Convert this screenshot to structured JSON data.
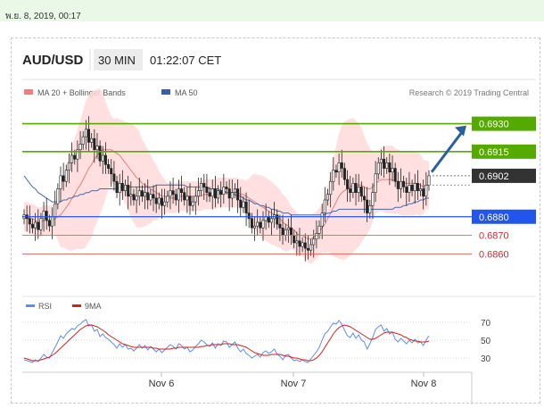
{
  "timestamp": "พ.ย. 8, 2019, 00:17",
  "header": {
    "pair": "AUD/USD",
    "interval": "30 MIN",
    "time": "01:22:07 CET"
  },
  "legend": {
    "ma20": "MA 20 + Bollinger Bands",
    "ma50": "MA 50",
    "credit": "Research © 2019 Trading Central"
  },
  "colors": {
    "resistance": "#55aa00",
    "current": "#333333",
    "pivot": "#2255ee",
    "support": "#e06060",
    "arrow": "#2a5f9e",
    "candle": "#222222",
    "bollinger_fill": "#ffd9d9",
    "ma20": "#e08080",
    "ma50": "#4a6aa8",
    "rsi": "#5b8ee6",
    "rsi_ma": "#d42020"
  },
  "chart_data": [
    {
      "type": "candlestick",
      "title": "AUD/USD",
      "ylim": [
        0.6853,
        0.6937
      ],
      "x_ticks": [
        "Nov 6",
        "Nov 7",
        "Nov 8"
      ],
      "levels": [
        {
          "name": "resistance-2",
          "value": 0.693,
          "label": "0.6930",
          "kind": "resistance"
        },
        {
          "name": "resistance-1",
          "value": 0.6915,
          "label": "0.6915",
          "kind": "resistance"
        },
        {
          "name": "current-price",
          "value": 0.6902,
          "label": "0.6902",
          "kind": "current"
        },
        {
          "name": "pivot",
          "value": 0.688,
          "label": "0.6880",
          "kind": "pivot"
        },
        {
          "name": "support-1",
          "value": 0.687,
          "label": "0.6870",
          "kind": "support"
        },
        {
          "name": "support-2",
          "value": 0.686,
          "label": "0.6860",
          "kind": "support"
        }
      ],
      "close": [
        0.6881,
        0.6879,
        0.6876,
        0.6874,
        0.6877,
        0.6873,
        0.6879,
        0.6883,
        0.6878,
        0.6875,
        0.688,
        0.6887,
        0.6895,
        0.6902,
        0.6899,
        0.6905,
        0.6909,
        0.6913,
        0.6911,
        0.6916,
        0.6919,
        0.6923,
        0.6927,
        0.692,
        0.6922,
        0.6916,
        0.6918,
        0.691,
        0.6913,
        0.6908,
        0.6906,
        0.6903,
        0.6899,
        0.6893,
        0.6898,
        0.6894,
        0.6897,
        0.6891,
        0.6892,
        0.6889,
        0.6891,
        0.6894,
        0.6891,
        0.6893,
        0.6889,
        0.6892,
        0.689,
        0.6887,
        0.689,
        0.6886,
        0.6888,
        0.6891,
        0.6894,
        0.6892,
        0.6889,
        0.6895,
        0.6893,
        0.6889,
        0.6891,
        0.6886,
        0.6888,
        0.6891,
        0.6894,
        0.6898,
        0.6896,
        0.6893,
        0.6891,
        0.6895,
        0.689,
        0.6894,
        0.6892,
        0.6896,
        0.6895,
        0.689,
        0.6893,
        0.6895,
        0.6889,
        0.6885,
        0.6888,
        0.6882,
        0.6879,
        0.6874,
        0.6875,
        0.6877,
        0.6874,
        0.6878,
        0.688,
        0.6877,
        0.6879,
        0.6881,
        0.6876,
        0.6874,
        0.687,
        0.6873,
        0.6874,
        0.687,
        0.6866,
        0.6867,
        0.6864,
        0.6866,
        0.6863,
        0.6862,
        0.6865,
        0.6868,
        0.6871,
        0.6875,
        0.6882,
        0.6889,
        0.6892,
        0.6899,
        0.6905,
        0.6904,
        0.6909,
        0.6906,
        0.69,
        0.6895,
        0.6893,
        0.6898,
        0.6893,
        0.6896,
        0.6891,
        0.6889,
        0.6882,
        0.6886,
        0.6893,
        0.6903,
        0.6909,
        0.6911,
        0.6906,
        0.6909,
        0.6904,
        0.6906,
        0.6899,
        0.6895,
        0.6899,
        0.6896,
        0.6893,
        0.6897,
        0.6894,
        0.6898,
        0.6894,
        0.6895,
        0.6891,
        0.6897,
        0.6902
      ],
      "ma20": [
        0.688,
        0.688,
        0.6879,
        0.6879,
        0.6878,
        0.6877,
        0.6877,
        0.6878,
        0.6878,
        0.6878,
        0.6878,
        0.6879,
        0.688,
        0.6881,
        0.6883,
        0.6885,
        0.6887,
        0.689,
        0.6892,
        0.6895,
        0.6897,
        0.69,
        0.6903,
        0.6906,
        0.6908,
        0.6911,
        0.6913,
        0.6915,
        0.6916,
        0.6916,
        0.6916,
        0.6916,
        0.6915,
        0.6914,
        0.6913,
        0.6911,
        0.6909,
        0.6907,
        0.6905,
        0.6903,
        0.6901,
        0.69,
        0.6898,
        0.6897,
        0.6896,
        0.6895,
        0.6894,
        0.6893,
        0.6892,
        0.6891,
        0.6891,
        0.689,
        0.689,
        0.689,
        0.689,
        0.6891,
        0.6891,
        0.6891,
        0.6891,
        0.6891,
        0.6891,
        0.6891,
        0.6891,
        0.6891,
        0.6892,
        0.6892,
        0.6892,
        0.6892,
        0.6892,
        0.6893,
        0.6893,
        0.6893,
        0.6893,
        0.6893,
        0.6893,
        0.6893,
        0.6893,
        0.6892,
        0.6892,
        0.6891,
        0.689,
        0.6889,
        0.6888,
        0.6887,
        0.6886,
        0.6885,
        0.6884,
        0.6883,
        0.6882,
        0.6881,
        0.688,
        0.6879,
        0.6877,
        0.6876,
        0.6875,
        0.6874,
        0.6873,
        0.6871,
        0.687,
        0.687,
        0.6869,
        0.6868,
        0.6868,
        0.6869,
        0.687,
        0.6872,
        0.6874,
        0.6876,
        0.6879,
        0.6882,
        0.6885,
        0.6888,
        0.6891,
        0.6893,
        0.6894,
        0.6895,
        0.6896,
        0.6897,
        0.6897,
        0.6897,
        0.6897,
        0.6896,
        0.6895,
        0.6895,
        0.6896,
        0.6898,
        0.6899,
        0.69,
        0.69,
        0.69,
        0.69,
        0.69,
        0.6899,
        0.6899,
        0.6898,
        0.6898,
        0.6898,
        0.6898,
        0.6898,
        0.6898,
        0.6898,
        0.6897,
        0.6896,
        0.6897,
        0.6897
      ],
      "ma50": [
        0.6902,
        0.69,
        0.6898,
        0.6896,
        0.6895,
        0.6893,
        0.6892,
        0.6891,
        0.689,
        0.6889,
        0.6888,
        0.6888,
        0.6888,
        0.6888,
        0.6889,
        0.6889,
        0.689,
        0.689,
        0.6891,
        0.6891,
        0.6892,
        0.6892,
        0.6893,
        0.6893,
        0.6894,
        0.6894,
        0.6894,
        0.6895,
        0.6895,
        0.6895,
        0.6895,
        0.6895,
        0.6895,
        0.6895,
        0.6896,
        0.6896,
        0.6896,
        0.6896,
        0.6896,
        0.6896,
        0.6896,
        0.6896,
        0.6896,
        0.6896,
        0.6896,
        0.6896,
        0.6896,
        0.6897,
        0.6897,
        0.6897,
        0.6897,
        0.6897,
        0.6897,
        0.6897,
        0.6897,
        0.6897,
        0.6897,
        0.6897,
        0.6896,
        0.6896,
        0.6896,
        0.6896,
        0.6896,
        0.6896,
        0.6896,
        0.6896,
        0.6895,
        0.6895,
        0.6895,
        0.6895,
        0.6894,
        0.6894,
        0.6893,
        0.6893,
        0.6892,
        0.6892,
        0.6891,
        0.6891,
        0.689,
        0.6889,
        0.6889,
        0.6888,
        0.6887,
        0.6887,
        0.6886,
        0.6886,
        0.6885,
        0.6885,
        0.6884,
        0.6884,
        0.6883,
        0.6883,
        0.6882,
        0.6882,
        0.6882,
        0.6881,
        0.6881,
        0.6881,
        0.6881,
        0.6881,
        0.6881,
        0.6881,
        0.6881,
        0.6881,
        0.6881,
        0.6881,
        0.6881,
        0.6881,
        0.6882,
        0.6882,
        0.6883,
        0.6883,
        0.6884,
        0.6884,
        0.6884,
        0.6884,
        0.6884,
        0.6884,
        0.6884,
        0.6884,
        0.6884,
        0.6884,
        0.6884,
        0.6884,
        0.6884,
        0.6884,
        0.6884,
        0.6884,
        0.6884,
        0.6884,
        0.6884,
        0.6884,
        0.6885,
        0.6885,
        0.6885,
        0.6886,
        0.6886,
        0.6887,
        0.6887,
        0.6888,
        0.6888,
        0.6889,
        0.6889,
        0.689,
        0.689
      ]
    },
    {
      "type": "line",
      "ylim": [
        20,
        80
      ],
      "y_ticks": [
        70,
        50,
        30
      ],
      "series": [
        {
          "name": "RSI",
          "values": [
            28,
            27,
            26,
            25,
            28,
            26,
            30,
            34,
            31,
            30,
            36,
            42,
            48,
            55,
            52,
            57,
            60,
            63,
            62,
            66,
            68,
            71,
            73,
            66,
            67,
            60,
            62,
            54,
            57,
            53,
            51,
            48,
            45,
            41,
            46,
            42,
            45,
            40,
            41,
            38,
            41,
            45,
            41,
            44,
            39,
            43,
            40,
            37,
            40,
            36,
            39,
            42,
            45,
            43,
            40,
            46,
            44,
            40,
            42,
            37,
            39,
            43,
            46,
            50,
            48,
            45,
            43,
            47,
            41,
            46,
            44,
            49,
            48,
            42,
            45,
            48,
            41,
            37,
            40,
            35,
            33,
            30,
            32,
            34,
            31,
            36,
            38,
            35,
            37,
            40,
            34,
            32,
            28,
            33,
            34,
            30,
            27,
            28,
            26,
            28,
            26,
            25,
            29,
            33,
            37,
            42,
            50,
            57,
            60,
            65,
            69,
            68,
            72,
            68,
            61,
            55,
            53,
            58,
            52,
            56,
            50,
            48,
            40,
            46,
            53,
            62,
            65,
            67,
            60,
            63,
            57,
            59,
            51,
            48,
            52,
            49,
            46,
            50,
            47,
            51,
            47,
            48,
            44,
            50,
            55
          ]
        },
        {
          "name": "9MA",
          "values": [
            30,
            29,
            28,
            27,
            27,
            27,
            28,
            29,
            30,
            31,
            33,
            35,
            38,
            41,
            44,
            47,
            50,
            53,
            56,
            59,
            62,
            64,
            66,
            67,
            67,
            66,
            65,
            63,
            61,
            59,
            56,
            54,
            52,
            50,
            48,
            46,
            45,
            44,
            43,
            42,
            42,
            42,
            42,
            42,
            42,
            42,
            41,
            41,
            40,
            40,
            40,
            40,
            40,
            41,
            41,
            42,
            42,
            42,
            42,
            42,
            42,
            42,
            42,
            43,
            43,
            44,
            44,
            45,
            45,
            45,
            45,
            46,
            46,
            46,
            45,
            45,
            45,
            44,
            43,
            42,
            40,
            38,
            36,
            35,
            34,
            33,
            33,
            33,
            34,
            34,
            34,
            34,
            33,
            32,
            32,
            31,
            30,
            30,
            29,
            28,
            28,
            27,
            27,
            28,
            30,
            33,
            37,
            42,
            47,
            52,
            57,
            61,
            64,
            66,
            67,
            66,
            65,
            63,
            61,
            59,
            57,
            55,
            53,
            51,
            51,
            52,
            54,
            56,
            58,
            59,
            59,
            59,
            58,
            57,
            56,
            54,
            53,
            51,
            50,
            49,
            49,
            48,
            48,
            48,
            49
          ]
        }
      ]
    }
  ]
}
